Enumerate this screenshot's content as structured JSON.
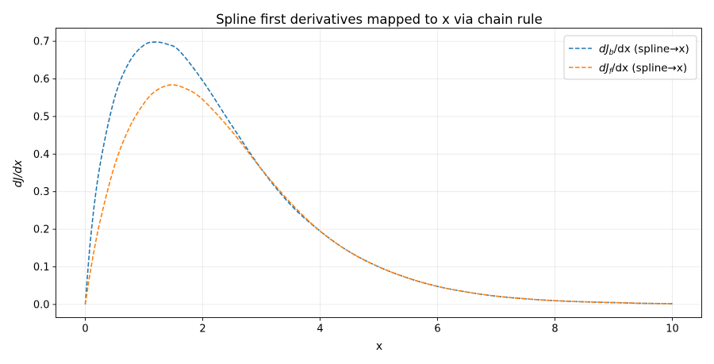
{
  "chart_data": {
    "type": "line",
    "title": "Spline first derivatives mapped to x via chain rule",
    "xlabel": "x",
    "ylabel": "dJ/dx",
    "xlim": [
      -0.5,
      10.5
    ],
    "ylim": [
      -0.035,
      0.735
    ],
    "xticks": [
      0,
      2,
      4,
      6,
      8,
      10
    ],
    "yticks": [
      0.0,
      0.1,
      0.2,
      0.3,
      0.4,
      0.5,
      0.6,
      0.7
    ],
    "xtick_labels": [
      "0",
      "2",
      "4",
      "6",
      "8",
      "10"
    ],
    "ytick_labels": [
      "0.0",
      "0.1",
      "0.2",
      "0.3",
      "0.4",
      "0.5",
      "0.6",
      "0.7"
    ],
    "grid": true,
    "legend_position": "top-right",
    "series": [
      {
        "name": "dJb/dx (spline→x)",
        "legend_main": "dJ",
        "legend_sub": "b",
        "legend_tail": "/dx (spline→x)",
        "color": "#1f77b4",
        "style": "dashed",
        "x": [
          0,
          0.1,
          0.25,
          0.5,
          0.75,
          1.0,
          1.2,
          1.4,
          1.6,
          2.0,
          2.5,
          3.0,
          3.5,
          4.0,
          4.5,
          5.0,
          5.5,
          6.0,
          6.5,
          7.0,
          7.5,
          8.0,
          8.5,
          9.0,
          9.5,
          10.0
        ],
        "y": [
          0.0,
          0.19,
          0.37,
          0.55,
          0.645,
          0.69,
          0.698,
          0.692,
          0.675,
          0.595,
          0.475,
          0.36,
          0.265,
          0.195,
          0.14,
          0.1,
          0.07,
          0.048,
          0.033,
          0.022,
          0.015,
          0.01,
          0.007,
          0.005,
          0.003,
          0.002
        ]
      },
      {
        "name": "dJf/dx (spline→x)",
        "legend_main": "dJ",
        "legend_sub": "f",
        "legend_tail": "/dx (spline→x)",
        "color": "#ff7f0e",
        "style": "dashed",
        "x": [
          0,
          0.1,
          0.25,
          0.5,
          0.75,
          1.0,
          1.2,
          1.45,
          1.7,
          2.0,
          2.5,
          3.0,
          3.5,
          4.0,
          4.5,
          5.0,
          5.5,
          6.0,
          6.5,
          7.0,
          7.5,
          8.0,
          8.5,
          9.0,
          9.5,
          10.0
        ],
        "y": [
          0.0,
          0.1,
          0.22,
          0.37,
          0.47,
          0.535,
          0.568,
          0.584,
          0.575,
          0.545,
          0.46,
          0.36,
          0.27,
          0.195,
          0.14,
          0.1,
          0.07,
          0.048,
          0.033,
          0.022,
          0.015,
          0.01,
          0.007,
          0.005,
          0.003,
          0.002
        ]
      }
    ]
  }
}
